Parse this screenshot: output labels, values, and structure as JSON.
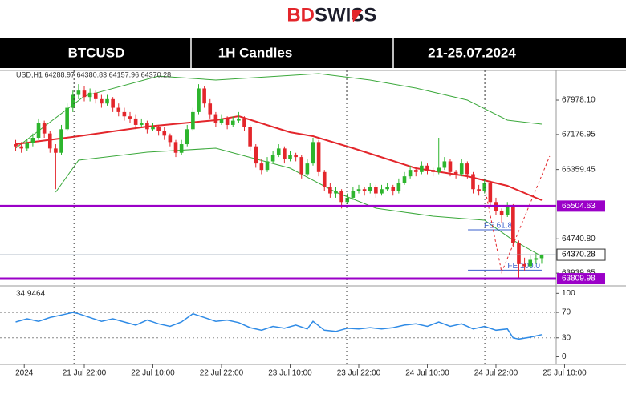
{
  "header": {
    "logo_bd": "BD",
    "logo_swiss": "SWISS",
    "symbol": "BTCUSD",
    "timeframe": "1H Candles",
    "dates": "21-25.07.2024"
  },
  "chart_data": [
    {
      "type": "candlestick",
      "info": "USD,H1 64288.97 64380.83 64157.96 64370.28",
      "up_color": "#2db52d",
      "down_color": "#e3262b",
      "xlim": [
        -2.74,
        94.53
      ],
      "ylim": [
        63680,
        68670
      ],
      "xticks": [
        {
          "value": 1.5,
          "label": "2024"
        },
        {
          "value": 12,
          "label": "21 Jul 22:00"
        },
        {
          "value": 24,
          "label": "22 Jul 10:00"
        },
        {
          "value": 36,
          "label": "22 Jul 22:00"
        },
        {
          "value": 48,
          "label": "23 Jul 10:00"
        },
        {
          "value": 60,
          "label": "23 Jul 22:00"
        },
        {
          "value": 72,
          "label": "24 Jul 10:00"
        },
        {
          "value": 84,
          "label": "24 Jul 22:00"
        },
        {
          "value": 96,
          "label": "25 Jul 10:00"
        }
      ],
      "yticks": [
        {
          "value": 67978.1,
          "label": "67978.10"
        },
        67176.95,
        66359.45,
        {
          "value": 64740.8,
          "label": "64740.80"
        },
        63939.65
      ],
      "levels": [
        {
          "value": 65504.63,
          "label": "65504.63"
        },
        {
          "value": 63809.98,
          "label": "63809.98"
        }
      ],
      "level_color": "#9b00c8",
      "last_price": 64370.28,
      "vlines": [
        10.2,
        57.9,
        82.05
      ],
      "candles": [
        [
          66950,
          67050,
          66800,
          66900
        ],
        [
          66900,
          67000,
          66750,
          66850
        ],
        [
          66850,
          67080,
          66800,
          66980
        ],
        [
          66980,
          67200,
          66900,
          67100
        ],
        [
          67100,
          67550,
          67050,
          67450
        ],
        [
          67450,
          67500,
          67100,
          67200
        ],
        [
          67200,
          67250,
          66750,
          66850
        ],
        [
          66850,
          66950,
          65900,
          66750
        ],
        [
          66750,
          67400,
          66700,
          67300
        ],
        [
          67300,
          67900,
          67250,
          67800
        ],
        [
          67800,
          68200,
          67700,
          68100
        ],
        [
          68100,
          68350,
          68000,
          68200
        ],
        [
          68200,
          68300,
          67950,
          68050
        ],
        [
          68050,
          68250,
          67950,
          68150
        ],
        [
          68150,
          68200,
          67900,
          68000
        ],
        [
          68000,
          68100,
          67800,
          67900
        ],
        [
          67900,
          68100,
          67850,
          68000
        ],
        [
          68000,
          68050,
          67700,
          67800
        ],
        [
          67800,
          67900,
          67600,
          67700
        ],
        [
          67700,
          67800,
          67500,
          67600
        ],
        [
          67600,
          67700,
          67450,
          67550
        ],
        [
          67550,
          67650,
          67300,
          67400
        ],
        [
          67400,
          67550,
          67350,
          67450
        ],
        [
          67450,
          67500,
          67200,
          67300
        ],
        [
          67300,
          67450,
          67250,
          67350
        ],
        [
          67350,
          67400,
          67150,
          67250
        ],
        [
          67250,
          67350,
          67050,
          67150
        ],
        [
          67150,
          67200,
          66900,
          67000
        ],
        [
          67000,
          67050,
          66650,
          66750
        ],
        [
          66750,
          67050,
          66700,
          66950
        ],
        [
          66950,
          67400,
          66900,
          67300
        ],
        [
          67300,
          67800,
          67250,
          67700
        ],
        [
          67700,
          68350,
          67650,
          68250
        ],
        [
          68250,
          68300,
          67800,
          67900
        ],
        [
          67900,
          68000,
          67550,
          67650
        ],
        [
          67650,
          67700,
          67350,
          67450
        ],
        [
          67450,
          67650,
          67400,
          67550
        ],
        [
          67550,
          67600,
          67300,
          67400
        ],
        [
          67400,
          67600,
          67350,
          67500
        ],
        [
          67500,
          67700,
          67450,
          67550
        ],
        [
          67550,
          67600,
          67250,
          67350
        ],
        [
          67350,
          67400,
          66800,
          66900
        ],
        [
          66900,
          66950,
          66400,
          66500
        ],
        [
          66500,
          66600,
          66250,
          66350
        ],
        [
          66350,
          66650,
          66300,
          66550
        ],
        [
          66550,
          66800,
          66500,
          66700
        ],
        [
          66700,
          66950,
          66650,
          66850
        ],
        [
          66850,
          66900,
          66500,
          66600
        ],
        [
          66600,
          66800,
          66550,
          66700
        ],
        [
          66700,
          66750,
          66550,
          66650
        ],
        [
          66650,
          66700,
          66150,
          66250
        ],
        [
          66250,
          66600,
          66200,
          66500
        ],
        [
          66500,
          67100,
          66450,
          67000
        ],
        [
          67000,
          67050,
          66200,
          66300
        ],
        [
          66300,
          66350,
          65850,
          65950
        ],
        [
          65950,
          66050,
          65700,
          65800
        ],
        [
          65800,
          65950,
          65700,
          65850
        ],
        [
          65850,
          65900,
          65450,
          65600
        ],
        [
          65600,
          65800,
          65550,
          65700
        ],
        [
          65700,
          65950,
          65650,
          65850
        ],
        [
          65850,
          66000,
          65800,
          65900
        ],
        [
          65900,
          65950,
          65750,
          65850
        ],
        [
          65850,
          66050,
          65800,
          65950
        ],
        [
          65950,
          66000,
          65700,
          65800
        ],
        [
          65800,
          66000,
          65750,
          65900
        ],
        [
          65900,
          66050,
          65850,
          65950
        ],
        [
          65950,
          66000,
          65750,
          65850
        ],
        [
          65850,
          66150,
          65800,
          66050
        ],
        [
          66050,
          66300,
          66000,
          66200
        ],
        [
          66200,
          66450,
          66150,
          66350
        ],
        [
          66350,
          66400,
          66200,
          66300
        ],
        [
          66300,
          66550,
          66250,
          66450
        ],
        [
          66450,
          66500,
          66250,
          66350
        ],
        [
          66350,
          66400,
          66200,
          66300
        ],
        [
          66300,
          67100,
          66250,
          66400
        ],
        [
          66400,
          66650,
          66350,
          66550
        ],
        [
          66550,
          66600,
          66200,
          66300
        ],
        [
          66300,
          66350,
          66150,
          66250
        ],
        [
          66250,
          66600,
          66200,
          66500
        ],
        [
          66500,
          66550,
          66150,
          66250
        ],
        [
          66250,
          66300,
          65800,
          65900
        ],
        [
          65900,
          66000,
          65750,
          65850
        ],
        [
          65850,
          66150,
          65800,
          66050
        ],
        [
          66050,
          66100,
          65500,
          65600
        ],
        [
          65600,
          65700,
          65300,
          65400
        ],
        [
          65400,
          65450,
          65100,
          65300
        ],
        [
          65300,
          65600,
          65250,
          65500
        ],
        [
          65500,
          65550,
          64550,
          64650
        ],
        [
          64650,
          64700,
          63820,
          64150
        ],
        [
          64150,
          64300,
          64000,
          64100
        ],
        [
          64100,
          64350,
          64050,
          64250
        ],
        [
          64250,
          64400,
          64150,
          64288.97
        ],
        [
          64288.97,
          64380.83,
          64157.96,
          64370.28
        ]
      ],
      "overlays": [
        {
          "color": "#3aa83a",
          "x": [
            0,
            12,
            25,
            35,
            53,
            62,
            70,
            79,
            86,
            92
          ],
          "values": [
            66857,
            68071,
            68538,
            68445,
            68595,
            68445,
            68258,
            67978,
            67511,
            67417
          ]
        },
        {
          "color": "#e3262b",
          "x": [
            0,
            11,
            23,
            35,
            39,
            48,
            52,
            59,
            70,
            79,
            86,
            92
          ],
          "values": [
            66950,
            67137,
            67361,
            67511,
            67604,
            67230,
            67137,
            66857,
            66389,
            66202,
            65978,
            65642
          ]
        },
        {
          "color": "#3aa83a",
          "x": [
            7,
            11,
            23,
            35,
            48,
            56,
            63,
            73,
            82,
            87,
            92
          ],
          "values": [
            65829,
            66576,
            66763,
            66857,
            66389,
            65829,
            65455,
            65268,
            65175,
            64707,
            64333
          ]
        }
      ],
      "fib_color": "#3a5fcd",
      "fib_levels": [
        {
          "label": "FE 61.8",
          "value": 64950,
          "x": [
            79.1,
            87.1
          ]
        },
        {
          "label": "FE 100.0",
          "value": 64010,
          "x": [
            79.1,
            92
          ]
        }
      ],
      "projection": {
        "color": "#e3262b",
        "x": [
          82.2,
          85,
          93.4
        ],
        "values": [
          65829,
          63959,
          66670
        ]
      }
    },
    {
      "type": "line",
      "color": "#2f8be6",
      "ylim": [
        -12,
        108
      ],
      "yticks": [
        0,
        30,
        70,
        100
      ],
      "levels": [
        30,
        70
      ],
      "x": [
        0,
        2,
        4,
        6,
        8,
        10,
        11,
        13,
        15,
        17,
        19,
        21,
        23,
        25,
        27,
        29,
        31,
        33,
        35,
        37,
        39,
        41,
        43,
        45,
        47,
        49,
        51,
        52,
        54,
        56,
        58,
        60,
        62,
        64,
        66,
        68,
        70,
        72,
        74,
        76,
        78,
        80,
        82,
        84,
        86,
        87,
        88,
        90,
        92
      ],
      "values": [
        55,
        60,
        56,
        62,
        66,
        70,
        68,
        62,
        56,
        60,
        55,
        50,
        58,
        52,
        48,
        55,
        68,
        62,
        56,
        58,
        54,
        46,
        42,
        48,
        45,
        50,
        44,
        56,
        42,
        40,
        45,
        44,
        46,
        44,
        46,
        50,
        52,
        48,
        55,
        48,
        52,
        44,
        48,
        42,
        44,
        30,
        28,
        31,
        34.9464
      ]
    }
  ]
}
